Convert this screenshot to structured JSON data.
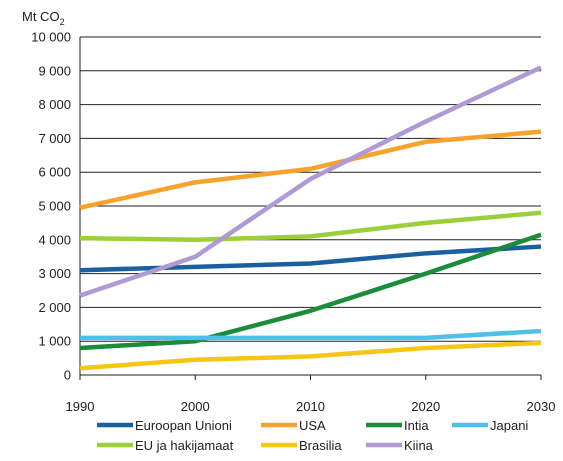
{
  "chart_data": {
    "type": "line",
    "title": "",
    "xlabel": "",
    "ylabel": "Mt CO",
    "ylabel_subscript": "2",
    "x": [
      1990,
      2000,
      2010,
      2020,
      2030
    ],
    "xlim": [
      1990,
      2030
    ],
    "ylim": [
      0,
      10000
    ],
    "y_ticks": [
      0,
      1000,
      2000,
      3000,
      4000,
      5000,
      6000,
      7000,
      8000,
      9000,
      10000
    ],
    "y_tick_labels": [
      "0",
      "1 000",
      "2 000",
      "3 000",
      "4 000",
      "5 000",
      "6 000",
      "7 000",
      "8 000",
      "9 000",
      "10 000"
    ],
    "x_tick_labels": [
      "1990",
      "2000",
      "2010",
      "2020",
      "2030"
    ],
    "grid": true,
    "legend_position": "bottom",
    "series": [
      {
        "name": "Euroopan Unioni",
        "color": "#1a5fa0",
        "values": [
          3100,
          3200,
          3300,
          3600,
          3800
        ]
      },
      {
        "name": "USA",
        "color": "#f7a22c",
        "values": [
          4950,
          5700,
          6100,
          6900,
          7200
        ]
      },
      {
        "name": "Intia",
        "color": "#1a8c3a",
        "values": [
          800,
          1000,
          1900,
          3000,
          4150
        ]
      },
      {
        "name": "Japani",
        "color": "#4fc1e8",
        "values": [
          1100,
          1100,
          1100,
          1100,
          1300
        ]
      },
      {
        "name": "EU ja hakijamaat",
        "color": "#9bcf3c",
        "values": [
          4050,
          4000,
          4100,
          4500,
          4800
        ]
      },
      {
        "name": "Brasilia",
        "color": "#f5c518",
        "values": [
          200,
          450,
          550,
          800,
          950
        ]
      },
      {
        "name": "Kiina",
        "color": "#b09ad4",
        "values": [
          2350,
          3500,
          5800,
          7500,
          9100
        ]
      }
    ]
  }
}
